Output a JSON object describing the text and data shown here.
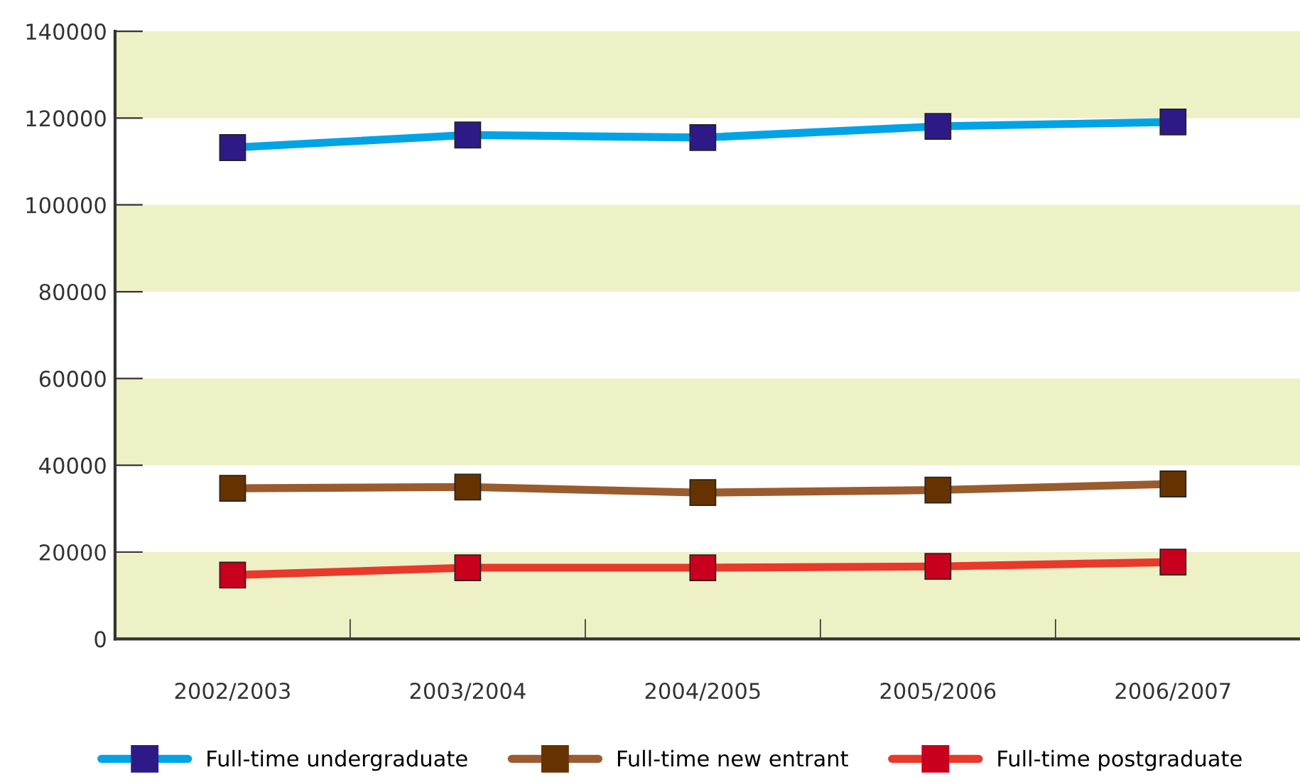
{
  "chart_data": {
    "type": "line",
    "categories": [
      "2002/2003",
      "2003/2004",
      "2004/2005",
      "2005/2006",
      "2006/2007"
    ],
    "series": [
      {
        "name": "Full-time undergraduate",
        "color": "#00a3e6",
        "colors": [
          "#2e1a87",
          "#2e1a87",
          "#2e1a87",
          "#2e1a87",
          "#2e1a87"
        ],
        "values": [
          113200,
          116100,
          115500,
          118100,
          119100
        ]
      },
      {
        "name": "Full-time new entrant",
        "color": "#9a5b2e",
        "colors": [
          "#663300",
          "#663300",
          "#663300",
          "#663300",
          "#663300"
        ],
        "values": [
          34700,
          35000,
          33700,
          34300,
          35700
        ]
      },
      {
        "name": "Full-time postgraduate",
        "color": "#e8392a",
        "colors": [
          "#c8001e",
          "#c8001e",
          "#c8001e",
          "#c8001e",
          "#c8001e"
        ],
        "values": [
          14700,
          16400,
          16400,
          16700,
          17700
        ]
      }
    ],
    "ylim": [
      0,
      140000
    ],
    "yticks": [
      0,
      20000,
      40000,
      60000,
      80000,
      100000,
      120000,
      140000
    ],
    "bands": [
      {
        "axis": "y",
        "from": 0,
        "to": 20000,
        "color": "#eef0c6"
      },
      {
        "axis": "y",
        "from": 40000,
        "to": 60000,
        "color": "#eef0c6"
      },
      {
        "axis": "y",
        "from": 80000,
        "to": 100000,
        "color": "#eef0c6"
      },
      {
        "axis": "y",
        "from": 120000,
        "to": 140000,
        "color": "#eef0c6"
      }
    ],
    "grid": false,
    "legend": "bottom",
    "marker": "square",
    "line_style": "solid"
  }
}
